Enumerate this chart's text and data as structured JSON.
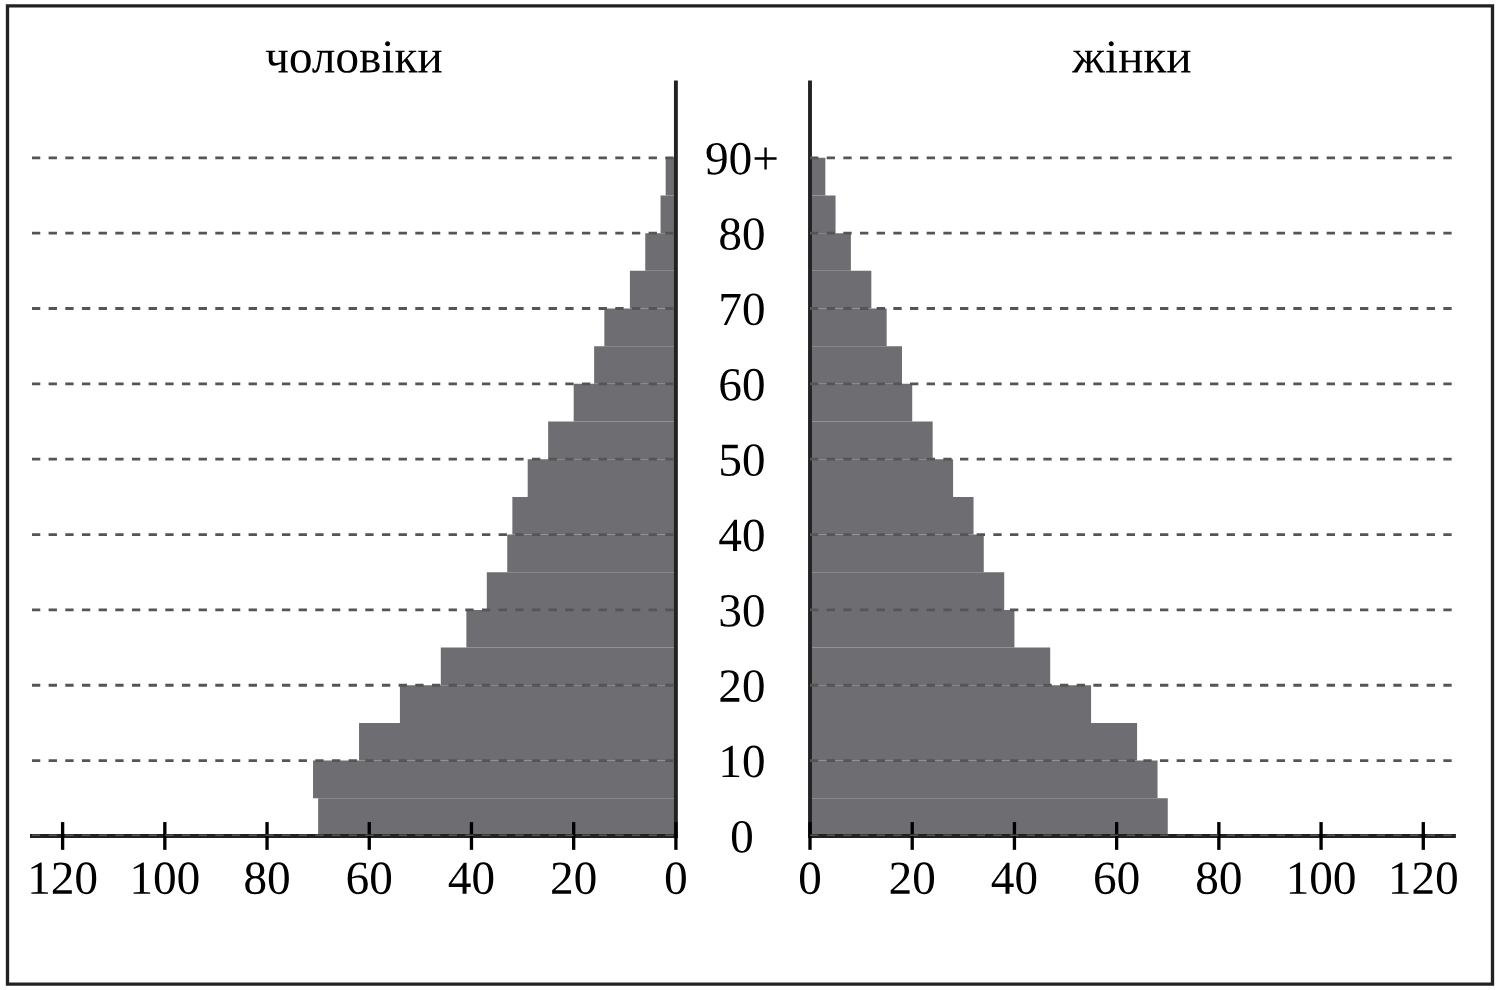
{
  "chart_data": [
    {
      "type": "bar",
      "orientation": "horizontal",
      "title": "чоловіки",
      "x": [
        2.5,
        7.5,
        12.5,
        17.5,
        22.5,
        27.5,
        32.5,
        37.5,
        42.5,
        47.5,
        52.5,
        57.5,
        62.5,
        67.5,
        72.5,
        77.5,
        82.5,
        87.5
      ],
      "series": [
        {
          "color": "#6e6e72",
          "values": [
            70,
            71,
            62,
            54,
            46,
            41,
            37,
            33,
            32,
            29,
            25,
            20,
            16,
            14,
            9,
            6,
            3,
            2
          ]
        }
      ],
      "xlim": [
        126,
        0
      ],
      "xticks": [
        120,
        100,
        80,
        60,
        40,
        20,
        0
      ],
      "ylim": [
        0,
        100
      ],
      "yticks": [
        0,
        10,
        20,
        30,
        40,
        50,
        60,
        70,
        80,
        90
      ],
      "tick_labels": "x",
      "grid": "y"
    },
    {
      "type": "bar",
      "orientation": "horizontal",
      "title": "жінки",
      "x": [
        2.5,
        7.5,
        12.5,
        17.5,
        22.5,
        27.5,
        32.5,
        37.5,
        42.5,
        47.5,
        52.5,
        57.5,
        62.5,
        67.5,
        72.5,
        77.5,
        82.5,
        87.5
      ],
      "series": [
        {
          "color": "#6e6e72",
          "values": [
            70,
            68,
            64,
            55,
            47,
            40,
            38,
            34,
            32,
            28,
            24,
            20,
            18,
            15,
            12,
            8,
            5,
            3
          ]
        }
      ],
      "xlim": [
        0,
        126
      ],
      "xticks": [
        0,
        20,
        40,
        60,
        80,
        100,
        120
      ],
      "ylim": [
        0,
        100
      ],
      "yticks": [
        0,
        10,
        20,
        30,
        40,
        50,
        60,
        70,
        80,
        {
          "value": 90,
          "label": "90+"
        }
      ],
      "grid": "y"
    }
  ]
}
